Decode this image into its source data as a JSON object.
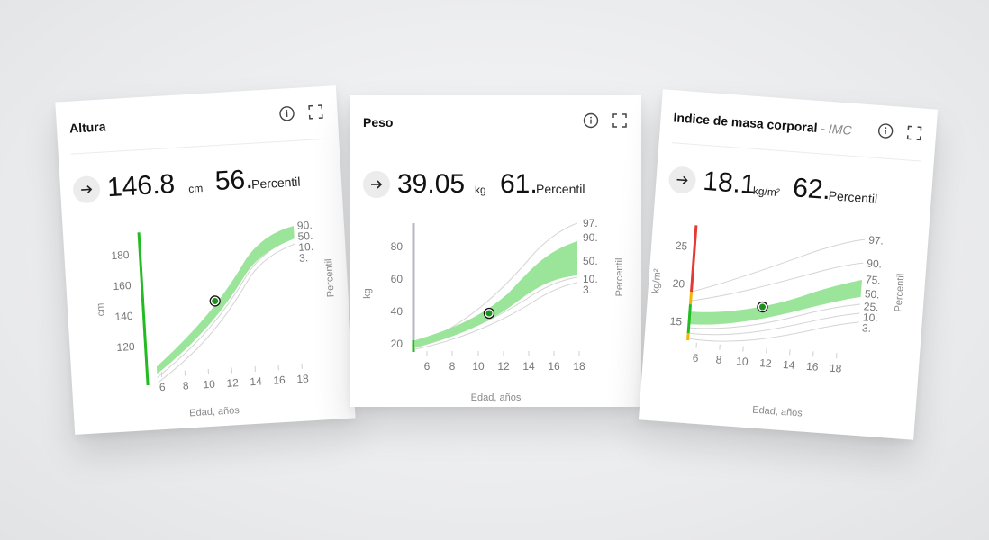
{
  "cards": {
    "altura": {
      "title": "Altura",
      "value": "146.8",
      "unit": "cm",
      "percentile_value": "56.",
      "percentile_label": "Percentil",
      "chart": {
        "y_label": "cm",
        "x_label": "Edad, años",
        "side_label": "Percentil",
        "y_ticks": [
          "120",
          "140",
          "160",
          "180"
        ],
        "x_ticks": [
          "6",
          "8",
          "10",
          "12",
          "14",
          "16",
          "18"
        ],
        "percentile_labels": [
          "90.",
          "50.",
          "10.",
          "3."
        ],
        "indicator_color": "#22bb22",
        "band_color": "#9be59b",
        "marker_color": "#1f8f1f"
      }
    },
    "peso": {
      "title": "Peso",
      "value": "39.05",
      "unit": "kg",
      "percentile_value": "61.",
      "percentile_label": "Percentil",
      "chart": {
        "y_label": "kg",
        "x_label": "Edad, años",
        "side_label": "Percentil",
        "y_ticks": [
          "20",
          "40",
          "60",
          "80"
        ],
        "x_ticks": [
          "6",
          "8",
          "10",
          "12",
          "14",
          "16",
          "18"
        ],
        "percentile_labels": [
          "97.",
          "90.",
          "50.",
          "10.",
          "3."
        ],
        "indicator_color": "#b9b9c2",
        "indicator_accent": "#22bb22",
        "band_color": "#9be59b",
        "marker_color": "#1f8f1f"
      }
    },
    "imc": {
      "title": "Indice de masa corporal",
      "title_sub": " - IMC",
      "value": "18.1",
      "unit": "kg/m²",
      "percentile_value": "62.",
      "percentile_label": "Percentil",
      "chart": {
        "y_label": "kg/m²",
        "x_label": "Edad, años",
        "side_label": "Percentil",
        "y_ticks": [
          "15",
          "20",
          "25"
        ],
        "x_ticks": [
          "6",
          "8",
          "10",
          "12",
          "14",
          "16",
          "18"
        ],
        "percentile_labels": [
          "97.",
          "90.",
          "75.",
          "50.",
          "25.",
          "10.",
          "3."
        ],
        "indicator_colors": [
          "#e53935",
          "#f5b400",
          "#22bb22"
        ],
        "band_color": "#9be59b",
        "marker_color": "#1f8f1f"
      }
    }
  },
  "icons": {
    "info": "info-circle-icon",
    "expand": "fullscreen-corners-icon",
    "arrow": "arrow-right-icon"
  }
}
